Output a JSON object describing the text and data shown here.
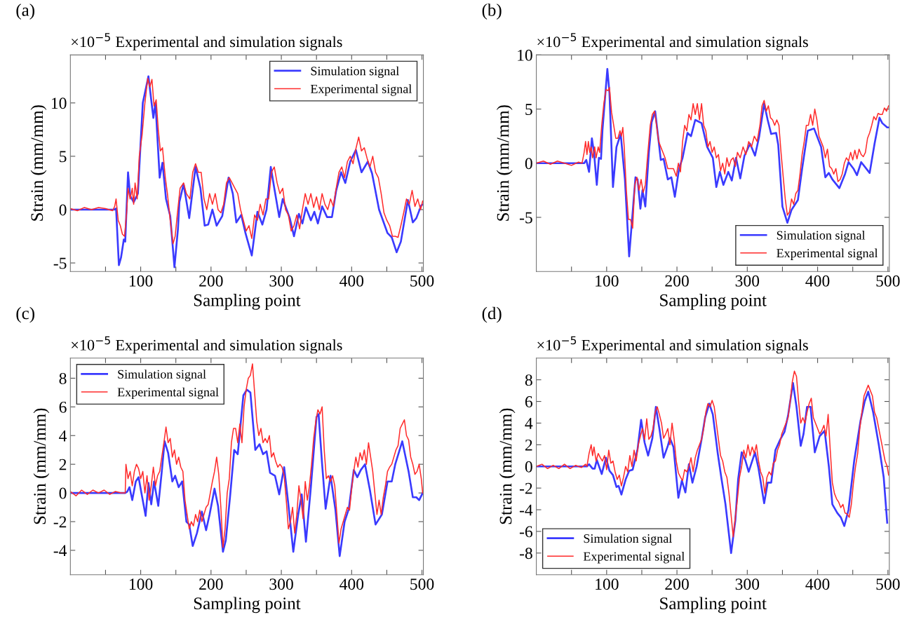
{
  "chart_data": [
    {
      "type": "line",
      "title": "×10$^{−5}$ Experimental and simulation signals",
      "xlabel": "Sampling point",
      "ylabel": "Strain (mm/mm)",
      "annotations": [
        "(a)"
      ],
      "legend": "top right",
      "xlim": [
        0,
        502
      ],
      "xticks": [
        {
          "value": 50,
          "label": null
        },
        100,
        {
          "value": 150,
          "label": null
        },
        200,
        {
          "value": 250,
          "label": null
        },
        300,
        {
          "value": 350,
          "label": null
        },
        400,
        {
          "value": 450,
          "label": null
        },
        500
      ],
      "ylim": [
        -5.8,
        14.5
      ],
      "yticks": [
        -5,
        0,
        5,
        10
      ],
      "series": [
        {
          "name": "Simulation signal",
          "color": "#3a3aff",
          "x": [
            0,
            62,
            65,
            69,
            72,
            76,
            78,
            82,
            85,
            90,
            96,
            103,
            111,
            118,
            121,
            127,
            131,
            136,
            142,
            148,
            153,
            155,
            161,
            169,
            178,
            185,
            191,
            196,
            202,
            208,
            216,
            225,
            231,
            236,
            243,
            249,
            258,
            266,
            273,
            279,
            285,
            290,
            297,
            302,
            312,
            318,
            325,
            330,
            335,
            342,
            347,
            352,
            358,
            365,
            372,
            378,
            385,
            391,
            398,
            406,
            414,
            423,
            429,
            439,
            451,
            457,
            464,
            470,
            480,
            487,
            492,
            499,
            502
          ],
          "values": [
            0,
            0,
            0.1,
            -5.2,
            -4.5,
            -2.8,
            -3,
            3.5,
            1.3,
            0.7,
            1.5,
            10,
            12.5,
            8.6,
            10,
            3,
            4.4,
            1,
            -0.6,
            -5.4,
            -1.8,
            0.7,
            2.4,
            -0.8,
            4,
            2,
            -1.5,
            -1.4,
            0,
            -1.5,
            -0.6,
            3,
            1.5,
            -1.2,
            -0.5,
            -2.2,
            -4.3,
            -0.2,
            -1.4,
            0,
            4,
            2,
            -0.7,
            1,
            -0.8,
            -2.5,
            -0.4,
            -1.3,
            0.2,
            -1,
            -0.2,
            -1.3,
            0.3,
            -0.7,
            -0.7,
            1.8,
            3.5,
            2.5,
            4.5,
            5.6,
            3.5,
            4.5,
            3.4,
            0,
            -2.2,
            -2.6,
            -4,
            -3,
            0.9,
            -1.2,
            -0.8,
            0.4,
            0.5
          ]
        },
        {
          "name": "Experimental signal",
          "color": "#ff2b2b",
          "x": [
            0,
            10,
            20,
            30,
            40,
            50,
            60,
            63,
            65,
            68,
            71,
            74,
            77,
            80,
            82,
            85,
            88,
            90,
            92,
            95,
            98,
            102,
            106,
            110,
            113,
            116,
            119,
            122,
            125,
            128,
            131,
            135,
            138,
            142,
            146,
            149,
            152,
            156,
            161,
            165,
            170,
            174,
            178,
            182,
            186,
            190,
            194,
            198,
            202,
            206,
            210,
            214,
            218,
            222,
            226,
            230,
            234,
            238,
            242,
            246,
            250,
            254,
            258,
            262,
            266,
            270,
            274,
            278,
            282,
            286,
            290,
            294,
            298,
            302,
            306,
            310,
            314,
            318,
            322,
            326,
            330,
            334,
            338,
            342,
            346,
            350,
            354,
            358,
            362,
            366,
            370,
            374,
            378,
            382,
            386,
            390,
            394,
            398,
            402,
            406,
            410,
            414,
            418,
            422,
            426,
            430,
            434,
            438,
            442,
            446,
            450,
            454,
            458,
            462,
            466,
            470,
            474,
            478,
            482,
            486,
            490,
            494,
            498,
            501
          ],
          "values": [
            0.1,
            -0.1,
            0.2,
            0,
            0.2,
            0.1,
            -0.1,
            0.3,
            1,
            -1,
            -1.5,
            -2.3,
            -2.5,
            -0.3,
            2,
            1,
            2,
            0.5,
            2.5,
            1,
            5,
            7,
            10,
            12.3,
            11.5,
            12.2,
            9.7,
            10.3,
            7.5,
            5.5,
            5.8,
            3,
            1.5,
            -1,
            -3.2,
            -2.5,
            -0.5,
            2,
            2.5,
            1.5,
            1,
            3.5,
            4.3,
            3.5,
            3.5,
            1,
            0,
            1.5,
            0.5,
            1.5,
            0,
            -0.3,
            0.5,
            2.5,
            3,
            2.5,
            2,
            1.5,
            0,
            -1,
            -2,
            -1.5,
            -2.7,
            -0.5,
            -1,
            0.5,
            -0.5,
            1,
            1,
            3.5,
            4,
            2.5,
            1.5,
            2,
            0,
            -0.5,
            -2,
            -1.5,
            -0.5,
            -1.8,
            0,
            1.5,
            0.5,
            1.5,
            0.2,
            1.2,
            0,
            1.5,
            0.5,
            0,
            1,
            0.3,
            2,
            3.5,
            4,
            3,
            4.5,
            5,
            4.3,
            5.7,
            6.8,
            5.5,
            5.8,
            4.8,
            4,
            5,
            3.5,
            3,
            1.5,
            -0.3,
            -1,
            -1.5,
            -2.5,
            -2.5,
            -2.6,
            -1.5,
            -0.3,
            1,
            0.5,
            1.8,
            0.3,
            1,
            0,
            0.8
          ]
        }
      ]
    },
    {
      "type": "line",
      "title": "×10$^{−5}$ Experimental and simulation signals",
      "xlabel": "Sampling point",
      "ylabel": "Strain (mm/mm)",
      "annotations": [
        "(b)"
      ],
      "legend": "bottom right",
      "xlim": [
        0,
        502
      ],
      "xticks": [
        {
          "value": 50,
          "label": null
        },
        100,
        {
          "value": 150,
          "label": null
        },
        200,
        {
          "value": 250,
          "label": null
        },
        300,
        {
          "value": 350,
          "label": null
        },
        400,
        {
          "value": 450,
          "label": null
        },
        500
      ],
      "ylim": [
        -10,
        10
      ],
      "yticks": [
        -5,
        0,
        5,
        10
      ],
      "series": [
        {
          "name": "Simulation signal",
          "color": "#3a3aff",
          "x": [
            0,
            68,
            71,
            75,
            79,
            82,
            86,
            89,
            92,
            94,
            101,
            104,
            109,
            114,
            120,
            126,
            132,
            141,
            144,
            148,
            151,
            155,
            160,
            164,
            169,
            174,
            177,
            181,
            187,
            192,
            197,
            203,
            208,
            215,
            220,
            226,
            235,
            243,
            251,
            256,
            261,
            266,
            273,
            278,
            284,
            290,
            296,
            304,
            311,
            317,
            324,
            329,
            334,
            341,
            344,
            350,
            357,
            363,
            372,
            378,
            386,
            395,
            405,
            411,
            416,
            421,
            431,
            439,
            444,
            451,
            456,
            462,
            474,
            481,
            488,
            492,
            499,
            502
          ],
          "values": [
            0,
            0,
            0.3,
            -0.8,
            2.3,
            1,
            -2,
            0.5,
            0.4,
            3,
            8.7,
            6.5,
            -2.2,
            1.5,
            2.7,
            -1.5,
            -8.6,
            -1.3,
            -1.5,
            -4.2,
            -2.5,
            -4.0,
            1,
            3.8,
            4.8,
            2,
            0.3,
            0.4,
            -1.5,
            -1.3,
            -3.1,
            -0.5,
            0.5,
            2.8,
            2.5,
            4.0,
            3.7,
            1.5,
            0.5,
            -2.2,
            -0.8,
            -2,
            -0.8,
            -1.6,
            0.5,
            -1.4,
            0.7,
            1.8,
            0.7,
            2.5,
            5.5,
            4,
            2.7,
            2.8,
            1.7,
            -4,
            -5.5,
            -4.3,
            -3.4,
            -0.5,
            3,
            3.2,
            1.5,
            -1.3,
            -0.9,
            -1.5,
            -2.3,
            -1,
            0.1,
            -0.5,
            -1.1,
            0.1,
            -0.9,
            1.8,
            4.2,
            3.7,
            3.3,
            3.3
          ]
        },
        {
          "name": "Experimental signal",
          "color": "#ff2b2b",
          "x": [
            0,
            10,
            20,
            30,
            40,
            50,
            60,
            65,
            68,
            70,
            72,
            74,
            76,
            78,
            80,
            83,
            85,
            88,
            90,
            93,
            96,
            99,
            102,
            104,
            107,
            110,
            113,
            116,
            119,
            121,
            123,
            125,
            128,
            131,
            134,
            137,
            140,
            143,
            146,
            149,
            152,
            155,
            158,
            162,
            165,
            168,
            171,
            174,
            177,
            180,
            183,
            187,
            191,
            195,
            199,
            202,
            205,
            208,
            211,
            214,
            217,
            220,
            223,
            226,
            229,
            232,
            235,
            238,
            241,
            244,
            247,
            250,
            253,
            256,
            259,
            262,
            265,
            268,
            271,
            274,
            277,
            280,
            283,
            286,
            290,
            294,
            298,
            302,
            306,
            310,
            314,
            318,
            321,
            324,
            327,
            330,
            333,
            336,
            339,
            342,
            345,
            348,
            351,
            354,
            357,
            360,
            363,
            366,
            369,
            372,
            375,
            378,
            381,
            384,
            387,
            390,
            393,
            396,
            399,
            402,
            405,
            408,
            411,
            414,
            417,
            420,
            423,
            426,
            429,
            432,
            435,
            438,
            441,
            444,
            447,
            450,
            453,
            456,
            459,
            462,
            465,
            468,
            471,
            474,
            477,
            480,
            483,
            486,
            489,
            492,
            495,
            498,
            501
          ],
          "values": [
            0,
            0.2,
            -0.1,
            0.2,
            0,
            -0.2,
            0.1,
            0,
            1,
            2,
            0.8,
            2,
            1,
            1.5,
            0.5,
            1.5,
            0.5,
            1.5,
            1,
            3.5,
            5.5,
            6.8,
            6.7,
            7,
            4.7,
            3.5,
            2.3,
            2.3,
            3,
            2.5,
            3.3,
            1.5,
            -2.5,
            -5.2,
            -5.2,
            -6,
            -2,
            -1.3,
            -2.5,
            -1.5,
            -2.7,
            -2,
            0.5,
            3.5,
            4.5,
            4.8,
            3.5,
            2,
            1.5,
            1,
            0.5,
            -0.5,
            -0.5,
            -0.5,
            -1.2,
            0,
            -0.8,
            2,
            3.5,
            3,
            4.5,
            4,
            5.5,
            4.5,
            5.5,
            4,
            5.5,
            3.5,
            3,
            1.5,
            2,
            1,
            1.5,
            0.5,
            0.8,
            -0.7,
            0,
            -1,
            0.5,
            -0.3,
            0.3,
            0.5,
            -0.3,
            1,
            0.5,
            1.5,
            0.8,
            2,
            1.5,
            2.5,
            2,
            3.5,
            5.3,
            5.8,
            4.8,
            5.3,
            4.2,
            4.0,
            3.5,
            4.0,
            3.5,
            1,
            -1.2,
            -3.3,
            -4.8,
            -4.5,
            -3.3,
            -3.8,
            -2.8,
            -2.5,
            -1,
            0.8,
            2,
            3.5,
            3.5,
            4.5,
            3.5,
            5,
            4,
            2.5,
            2,
            1.5,
            0.5,
            1.3,
            -0.3,
            -0.5,
            -1,
            -0.5,
            -1.7,
            -1.5,
            -1,
            0,
            0.5,
            0.2,
            1,
            0.3,
            1.2,
            0.4,
            1.3,
            0.8,
            0.6,
            1.0,
            2.3,
            2.8,
            3.5,
            4.3,
            4,
            4.6,
            4.5,
            4.5,
            5.1,
            4.8,
            5.3
          ]
        }
      ]
    },
    {
      "type": "line",
      "title": "×10$^{−5}$ Experimental and simulation signals",
      "xlabel": "Sampling point",
      "ylabel": "Strain (mm/mm)",
      "annotations": [
        "(c)"
      ],
      "legend": "top left",
      "xlim": [
        0,
        502
      ],
      "xticks": [
        {
          "value": 50,
          "label": null
        },
        100,
        {
          "value": 150,
          "label": null
        },
        200,
        {
          "value": 250,
          "label": null
        },
        300,
        {
          "value": 350,
          "label": null
        },
        400,
        {
          "value": 450,
          "label": null
        },
        500
      ],
      "ylim": [
        -5.7,
        9.4
      ],
      "yticks": [
        -4,
        -2,
        0,
        2,
        4,
        6,
        8
      ],
      "series": [
        {
          "name": "Simulation signal",
          "color": "#3a3aff",
          "x": [
            0,
            78,
            81,
            84,
            88,
            93,
            97,
            101,
            107,
            111,
            115,
            119,
            125,
            130,
            134,
            139,
            142,
            145,
            149,
            154,
            159,
            165,
            169,
            174,
            180,
            187,
            193,
            198,
            205,
            210,
            217,
            221,
            227,
            233,
            238,
            246,
            251,
            256,
            263,
            269,
            274,
            279,
            284,
            291,
            297,
            304,
            310,
            317,
            324,
            329,
            335,
            342,
            350,
            353,
            358,
            363,
            370,
            377,
            383,
            390,
            396,
            403,
            408,
            413,
            419,
            426,
            434,
            443,
            451,
            457,
            462,
            472,
            481,
            487,
            492,
            496,
            501
          ],
          "values": [
            0,
            0,
            0.1,
            0.4,
            -0.5,
            0.8,
            1.1,
            0,
            -1.6,
            0.7,
            -0.8,
            0.8,
            -0.9,
            1.5,
            3.6,
            2.8,
            1.8,
            0.8,
            1.2,
            0.4,
            0.8,
            -2,
            -2.2,
            -3.7,
            -2.8,
            -1.3,
            -2.6,
            -1.5,
            0.3,
            -0.9,
            -4.1,
            -3.3,
            -0.3,
            3,
            2.7,
            6.8,
            7.2,
            7.0,
            3,
            3.4,
            2.7,
            2.9,
            1.4,
            1.2,
            -0.1,
            1.8,
            -0.8,
            -4.1,
            -1.5,
            -0.1,
            -3.4,
            0.4,
            5.3,
            5.5,
            2,
            -1.1,
            1.2,
            -1.2,
            -4.4,
            -2,
            -1.1,
            1.6,
            1.1,
            1.6,
            2,
            0.2,
            -2.2,
            -1.5,
            0.8,
            0.8,
            2,
            3.6,
            1.5,
            -0.3,
            -0.3,
            -0.5,
            0
          ]
        },
        {
          "name": "Experimental signal",
          "color": "#ff2b2b",
          "x": [
            0,
            8,
            16,
            24,
            32,
            40,
            48,
            56,
            64,
            72,
            78,
            79,
            82,
            85,
            88,
            91,
            94,
            97,
            100,
            103,
            106,
            109,
            112,
            115,
            118,
            121,
            124,
            127,
            130,
            133,
            136,
            139,
            142,
            145,
            148,
            151,
            154,
            157,
            160,
            163,
            166,
            169,
            172,
            175,
            178,
            181,
            184,
            187,
            190,
            193,
            196,
            199,
            202,
            205,
            208,
            211,
            214,
            217,
            220,
            223,
            226,
            229,
            232,
            235,
            238,
            241,
            244,
            247,
            250,
            253,
            256,
            259,
            262,
            265,
            268,
            271,
            274,
            277,
            280,
            283,
            286,
            289,
            292,
            295,
            298,
            301,
            304,
            307,
            310,
            313,
            316,
            319,
            322,
            325,
            328,
            331,
            334,
            337,
            340,
            343,
            346,
            349,
            352,
            355,
            358,
            361,
            364,
            367,
            370,
            373,
            376,
            379,
            382,
            385,
            388,
            391,
            394,
            397,
            400,
            403,
            406,
            409,
            412,
            415,
            418,
            421,
            424,
            427,
            430,
            433,
            436,
            439,
            442,
            445,
            448,
            451,
            454,
            457,
            460,
            463,
            466,
            469,
            472,
            475,
            478,
            481,
            484,
            487,
            490,
            493,
            496,
            499,
            501
          ],
          "values": [
            0.1,
            -0.2,
            0.2,
            -0.1,
            0.2,
            0,
            0.2,
            -0.1,
            0.1,
            0,
            0,
            2,
            1,
            1.5,
            0.5,
            1.5,
            2,
            1.7,
            1,
            1.5,
            0,
            1.2,
            -0.5,
            0.5,
            1.8,
            0.5,
            1.2,
            1.5,
            2.5,
            3.5,
            4.6,
            3.5,
            3.8,
            2.5,
            3,
            2,
            2.5,
            1.8,
            1.5,
            -0.5,
            -1.5,
            -2.5,
            -2,
            -2.3,
            -1.5,
            -2,
            -1.2,
            -2,
            -1.5,
            -1,
            -0.8,
            0,
            0.8,
            1.5,
            2.5,
            1.3,
            -1,
            -3.8,
            -2.5,
            0,
            1,
            3.5,
            4.5,
            4.5,
            3.5,
            4.8,
            3.5,
            6,
            7.2,
            8,
            8.2,
            9,
            7,
            5,
            4,
            4.5,
            3.5,
            3.8,
            3.5,
            4.0,
            2.5,
            2.8,
            2.2,
            1.8,
            2.0,
            1.8,
            1.2,
            -0.5,
            -2.5,
            -2,
            -1,
            -2.8,
            -1.5,
            0.5,
            -0.5,
            -1.8,
            0.8,
            -0.5,
            0.5,
            2,
            3.8,
            5,
            5.8,
            5.5,
            6,
            3,
            1,
            1.2,
            0.8,
            1.2,
            0.5,
            -1.5,
            -3.5,
            -2.5,
            -2,
            -1.5,
            -1,
            -1.2,
            0.3,
            1.5,
            2.5,
            1.8,
            2.8,
            2.3,
            3.0,
            2.0,
            3.5,
            2.5,
            1.5,
            0,
            -1.5,
            -0.5,
            -1.5,
            -0.3,
            0.5,
            1.5,
            1.8,
            2,
            2.5,
            3,
            3.3,
            4.5,
            4.8,
            5.1,
            4.0,
            3.7,
            2.5,
            2,
            1.3,
            1.5,
            2,
            1,
            0
          ]
        }
      ]
    },
    {
      "type": "line",
      "title": "×10$^{−5}$ Experimental and simulation signals",
      "xlabel": "Sampling point",
      "ylabel": "Strain (mm/mm)",
      "annotations": [
        "(d)"
      ],
      "legend": "bottom left",
      "xlim": [
        0,
        502
      ],
      "xticks": [
        {
          "value": 50,
          "label": null
        },
        100,
        {
          "value": 150,
          "label": null
        },
        200,
        {
          "value": 250,
          "label": null
        },
        300,
        {
          "value": 350,
          "label": null
        },
        400,
        {
          "value": 450,
          "label": null
        },
        500
      ],
      "ylim": [
        -10,
        10
      ],
      "yticks": [
        -8,
        -6,
        -4,
        -2,
        0,
        2,
        4,
        6,
        8
      ],
      "series": [
        {
          "name": "Simulation signal",
          "color": "#3a3aff",
          "x": [
            0,
            72,
            75,
            80,
            83,
            86,
            93,
            99,
            104,
            109,
            114,
            117,
            121,
            127,
            132,
            137,
            144,
            149,
            154,
            159,
            165,
            170,
            175,
            181,
            187,
            190,
            195,
            202,
            207,
            212,
            217,
            222,
            228,
            235,
            240,
            246,
            251,
            258,
            263,
            269,
            277,
            283,
            287,
            292,
            297,
            302,
            311,
            316,
            324,
            329,
            334,
            340,
            347,
            353,
            358,
            365,
            370,
            376,
            380,
            385,
            390,
            396,
            403,
            410,
            416,
            421,
            428,
            433,
            438,
            444,
            452,
            461,
            467,
            472,
            479,
            487,
            494,
            499
          ],
          "values": [
            0,
            0,
            0.2,
            -0.2,
            -0.2,
            0.6,
            -0.7,
            0.8,
            -0.4,
            -0.8,
            -1.9,
            -1.8,
            -2.6,
            -1.2,
            -0.4,
            -0.3,
            1.6,
            4.3,
            2.2,
            1,
            2.6,
            5.5,
            3.5,
            0.8,
            1.9,
            2.6,
            1.8,
            -2.9,
            -1.3,
            -2.4,
            0.2,
            -1.5,
            0,
            2.5,
            4.5,
            5.8,
            4.8,
            1.2,
            -1,
            -3.5,
            -8,
            -5,
            -1.2,
            1.3,
            0.6,
            -0.5,
            1.3,
            -0.2,
            -3.4,
            -1.5,
            -1.5,
            1.5,
            2.5,
            3.2,
            4.7,
            7.7,
            5.5,
            1.9,
            3,
            5.5,
            5.5,
            1.3,
            2.8,
            3.3,
            0,
            -3.5,
            -4.3,
            -4.7,
            -5.5,
            -4,
            0.5,
            4.2,
            6,
            6.9,
            5,
            2,
            -1,
            -5.2
          ]
        },
        {
          "name": "Experimental signal",
          "color": "#ff2b2b",
          "x": [
            0,
            8,
            16,
            24,
            32,
            40,
            48,
            56,
            64,
            70,
            72,
            75,
            78,
            80,
            82,
            85,
            88,
            91,
            94,
            97,
            100,
            103,
            106,
            109,
            112,
            115,
            118,
            121,
            124,
            127,
            130,
            133,
            136,
            139,
            142,
            145,
            148,
            151,
            154,
            157,
            160,
            163,
            166,
            169,
            172,
            175,
            178,
            181,
            184,
            187,
            190,
            193,
            196,
            199,
            202,
            205,
            208,
            211,
            214,
            217,
            220,
            223,
            226,
            229,
            232,
            235,
            238,
            241,
            244,
            247,
            250,
            253,
            256,
            259,
            262,
            265,
            268,
            271,
            274,
            277,
            280,
            283,
            286,
            289,
            292,
            295,
            298,
            301,
            304,
            307,
            310,
            313,
            316,
            319,
            322,
            325,
            328,
            331,
            334,
            337,
            340,
            343,
            346,
            349,
            352,
            355,
            358,
            361,
            364,
            367,
            370,
            373,
            376,
            379,
            382,
            385,
            388,
            391,
            394,
            397,
            400,
            403,
            406,
            409,
            412,
            415,
            418,
            421,
            424,
            427,
            430,
            433,
            436,
            439,
            442,
            445,
            448,
            451,
            454,
            457,
            460,
            463,
            466,
            469,
            472,
            475,
            478,
            481,
            484,
            487,
            490,
            493,
            496,
            499,
            501
          ],
          "values": [
            0,
            0.2,
            -0.2,
            0.1,
            -0.2,
            0.2,
            -0.2,
            0.1,
            -0.1,
            0.2,
            0,
            1.2,
            2,
            1,
            1.8,
            0.5,
            1.2,
            0.8,
            0.5,
            1.0,
            -0.3,
            1.5,
            0.3,
            0.5,
            -0.5,
            -1.2,
            -0.8,
            -1.8,
            -1,
            0,
            -0.5,
            1,
            0,
            1.5,
            0.5,
            2,
            2.8,
            3.5,
            2.5,
            4.4,
            2.5,
            2.8,
            3.5,
            5,
            5.5,
            4.8,
            4,
            2.6,
            3,
            3.5,
            2,
            4,
            2.5,
            0.5,
            -0.6,
            -1,
            -1.3,
            -0.3,
            -0.5,
            0,
            0.8,
            -0.5,
            0.8,
            1.5,
            2,
            2.5,
            3.5,
            5,
            5.8,
            5.5,
            6.1,
            5.5,
            4.0,
            2.5,
            1,
            0.5,
            -0.5,
            -1,
            -2.5,
            -4.5,
            -6.5,
            -4.7,
            -3,
            -1,
            0,
            1.5,
            0.8,
            2,
            1,
            1.8,
            1.2,
            2,
            0.5,
            -0.5,
            -1,
            -2.5,
            -1,
            -0.5,
            -0.8,
            0.3,
            0.5,
            1.5,
            2,
            3,
            3.5,
            4,
            4.5,
            6,
            7.8,
            8.8,
            8.3,
            6,
            4,
            4.5,
            4,
            5,
            5.8,
            6.3,
            4.5,
            4,
            3.5,
            3,
            3.3,
            3.8,
            2.8,
            4.8,
            1.5,
            -1.5,
            -2.5,
            -3,
            -3.3,
            -3.8,
            -3.5,
            -4.3,
            -4.4,
            -4.7,
            -3.5,
            -1.5,
            0,
            1.2,
            3.5,
            5,
            6.5,
            7,
            7.5,
            7,
            6.5,
            5,
            4.5,
            3.5,
            2.5,
            1.5,
            0.5,
            0,
            -0.8
          ]
        }
      ]
    }
  ]
}
